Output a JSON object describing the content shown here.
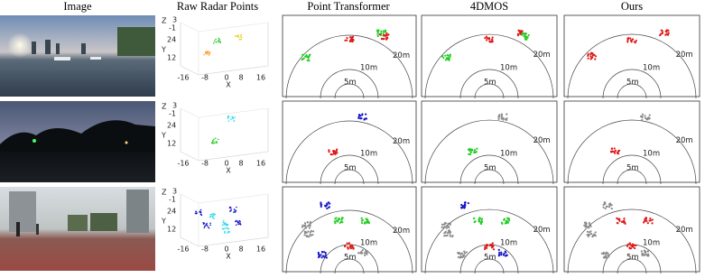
{
  "header": {
    "columns": [
      "Image",
      "Raw Radar Points",
      "Point Transformer",
      "4DMOS",
      "Ours"
    ]
  },
  "radar_axes": {
    "z_label": "Z",
    "z_ticks": [
      "3",
      "-1"
    ],
    "y_ticks": [
      "24",
      "12"
    ],
    "y_label": "Y",
    "x_ticks": [
      "-16",
      "-8",
      "0",
      "8",
      "16"
    ],
    "x_label": "X"
  },
  "range_labels": [
    "20m",
    "10m",
    "5m"
  ]
}
